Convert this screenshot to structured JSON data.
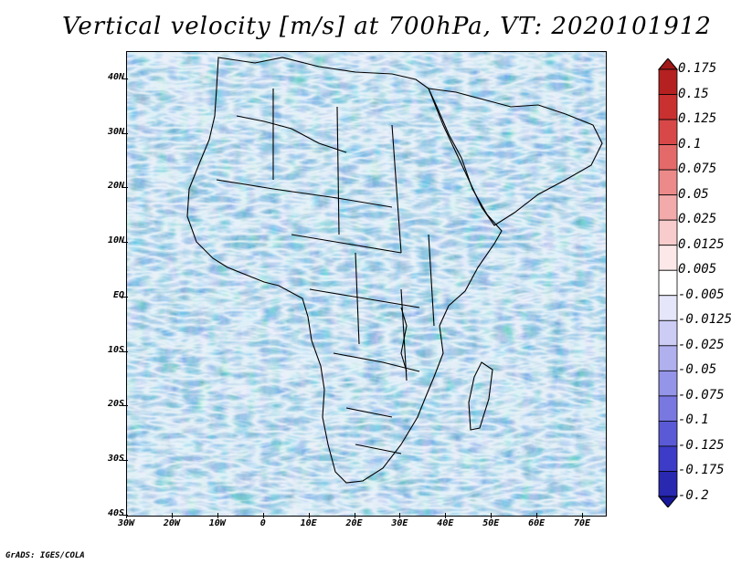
{
  "title": "Vertical velocity [m/s] at 700hPa, VT: 2020101912",
  "credit": "GrADS: IGES/COLA",
  "map": {
    "y_labels": [
      "40N",
      "30N",
      "20N",
      "10N",
      "EQ",
      "10S",
      "20S",
      "30S",
      "40S"
    ],
    "x_labels": [
      "30W",
      "20W",
      "10W",
      "0",
      "10E",
      "20E",
      "30E",
      "40E",
      "50E",
      "60E",
      "70E"
    ],
    "lat_range": [
      -40,
      45
    ],
    "lon_range": [
      -30,
      75
    ]
  },
  "colorbar": {
    "labels": [
      "0.175",
      "0.15",
      "0.125",
      "0.1",
      "0.075",
      "0.05",
      "0.025",
      "0.0125",
      "0.005",
      "-0.005",
      "-0.0125",
      "-0.025",
      "-0.05",
      "-0.075",
      "-0.1",
      "-0.125",
      "-0.175",
      "-0.2"
    ],
    "colors": [
      "#a01818",
      "#b52020",
      "#c93030",
      "#d84848",
      "#e46a6a",
      "#ec8a8a",
      "#f3aaaa",
      "#f8cccc",
      "#fce8e8",
      "#ffffff",
      "#e6e6fb",
      "#ccccf5",
      "#b0b0ef",
      "#9494e8",
      "#7878e0",
      "#5a5ad6",
      "#3c3cc8",
      "#2828b0",
      "#18189a"
    ]
  },
  "icons": [
    "velocity-field-map",
    "colorbar"
  ]
}
